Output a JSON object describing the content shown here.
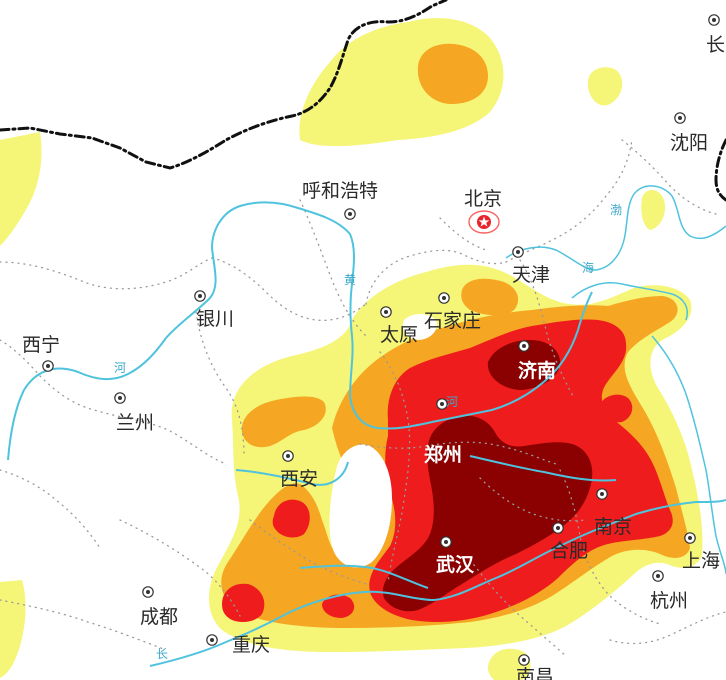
{
  "colors": {
    "background": "#ffffff",
    "level1": "#f5f577",
    "level2": "#f5a623",
    "level3": "#ee1c1c",
    "level4": "#8b0000",
    "river": "#4fc3de",
    "border": "#111111",
    "province": "#9a9a9a"
  },
  "cities": {
    "chang": "长",
    "shenyang": "沈阳",
    "huhehaote": "呼和浩特",
    "beijing": "北京",
    "tianjin": "天津",
    "shijiazhuang": "石家庄",
    "yinchuan": "银川",
    "taiyuan": "太原",
    "xining": "西宁",
    "jinan": "济南",
    "lanzhou": "兰州",
    "zhengzhou": "郑州",
    "xian": "西安",
    "nanjing": "南京",
    "hefei": "合肥",
    "wuhan": "武汉",
    "shanghai": "上海",
    "chengdu": "成都",
    "hangzhou": "杭州",
    "chongqing": "重庆",
    "nanchang": "南昌"
  },
  "water_labels": {
    "huang_he_1": "黄",
    "huang_he_2": "河",
    "bohai_1": "渤",
    "bohai_2": "海",
    "he_west": "河",
    "chang_jiang": "长"
  }
}
